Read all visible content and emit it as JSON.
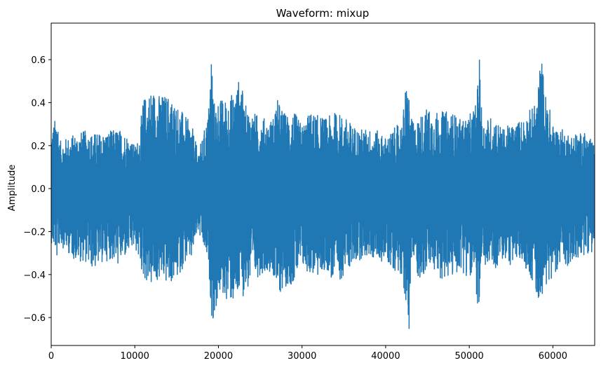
{
  "chart_data": {
    "type": "line",
    "title": "Waveform: mixup",
    "xlabel": "",
    "ylabel": "Amplitude",
    "xlim": [
      0,
      65000
    ],
    "ylim": [
      -0.73,
      0.77
    ],
    "x_ticks": [
      0,
      10000,
      20000,
      30000,
      40000,
      50000,
      60000
    ],
    "x_tick_labels": [
      "0",
      "10000",
      "20000",
      "30000",
      "40000",
      "50000",
      "60000"
    ],
    "y_ticks": [
      -0.6,
      -0.4,
      -0.2,
      0.0,
      0.2,
      0.4,
      0.6
    ],
    "y_tick_labels": [
      "−0.6",
      "−0.4",
      "−0.2",
      "0.0",
      "0.2",
      "0.4",
      "0.6"
    ],
    "grid": false,
    "series": [
      {
        "color": "#1f77b4",
        "x": [
          0,
          500,
          700,
          1000,
          2000,
          3000,
          4000,
          5000,
          6000,
          7000,
          8000,
          9000,
          10000,
          10500,
          11000,
          12000,
          13000,
          14000,
          15000,
          16000,
          16800,
          17500,
          18000,
          18800,
          19200,
          19400,
          19600,
          20000,
          21000,
          22000,
          22700,
          23000,
          24000,
          25000,
          26000,
          26500,
          27000,
          28000,
          29000,
          30000,
          31000,
          32000,
          33000,
          34000,
          35000,
          36000,
          37000,
          38000,
          39000,
          40000,
          41000,
          42000,
          42500,
          42800,
          43000,
          43500,
          44000,
          45000,
          46000,
          47000,
          48000,
          49000,
          50000,
          50800,
          51300,
          51500,
          52000,
          53000,
          54000,
          55000,
          56000,
          57000,
          58000,
          58400,
          58700,
          59000,
          59500,
          60000,
          61000,
          62000,
          63000,
          64000,
          65000
        ],
        "y_max": [
          0.27,
          0.33,
          0.39,
          0.22,
          0.24,
          0.26,
          0.27,
          0.26,
          0.26,
          0.27,
          0.28,
          0.26,
          0.2,
          0.24,
          0.42,
          0.47,
          0.44,
          0.44,
          0.4,
          0.34,
          0.3,
          0.18,
          0.22,
          0.36,
          0.7,
          0.42,
          0.4,
          0.42,
          0.42,
          0.46,
          0.54,
          0.4,
          0.36,
          0.34,
          0.32,
          0.33,
          0.42,
          0.35,
          0.36,
          0.3,
          0.36,
          0.34,
          0.33,
          0.36,
          0.34,
          0.3,
          0.28,
          0.28,
          0.27,
          0.24,
          0.28,
          0.32,
          0.52,
          0.45,
          0.33,
          0.3,
          0.34,
          0.38,
          0.36,
          0.36,
          0.36,
          0.32,
          0.34,
          0.4,
          0.64,
          0.33,
          0.33,
          0.34,
          0.28,
          0.3,
          0.32,
          0.36,
          0.4,
          0.56,
          0.62,
          0.46,
          0.4,
          0.3,
          0.28,
          0.26,
          0.26,
          0.26,
          0.2
        ],
        "y_min": [
          -0.25,
          -0.3,
          -0.33,
          -0.26,
          -0.3,
          -0.34,
          -0.34,
          -0.38,
          -0.35,
          -0.33,
          -0.36,
          -0.32,
          -0.28,
          -0.34,
          -0.42,
          -0.46,
          -0.43,
          -0.45,
          -0.43,
          -0.35,
          -0.34,
          -0.2,
          -0.26,
          -0.36,
          -0.6,
          -0.63,
          -0.6,
          -0.5,
          -0.52,
          -0.55,
          -0.5,
          -0.5,
          -0.45,
          -0.4,
          -0.38,
          -0.4,
          -0.51,
          -0.46,
          -0.44,
          -0.38,
          -0.4,
          -0.42,
          -0.38,
          -0.47,
          -0.4,
          -0.36,
          -0.33,
          -0.32,
          -0.34,
          -0.34,
          -0.38,
          -0.4,
          -0.63,
          -0.66,
          -0.4,
          -0.34,
          -0.44,
          -0.38,
          -0.4,
          -0.43,
          -0.42,
          -0.38,
          -0.42,
          -0.48,
          -0.64,
          -0.4,
          -0.37,
          -0.38,
          -0.34,
          -0.36,
          -0.34,
          -0.38,
          -0.5,
          -0.54,
          -0.49,
          -0.48,
          -0.45,
          -0.4,
          -0.36,
          -0.36,
          -0.34,
          -0.3,
          -0.3
        ]
      }
    ]
  }
}
